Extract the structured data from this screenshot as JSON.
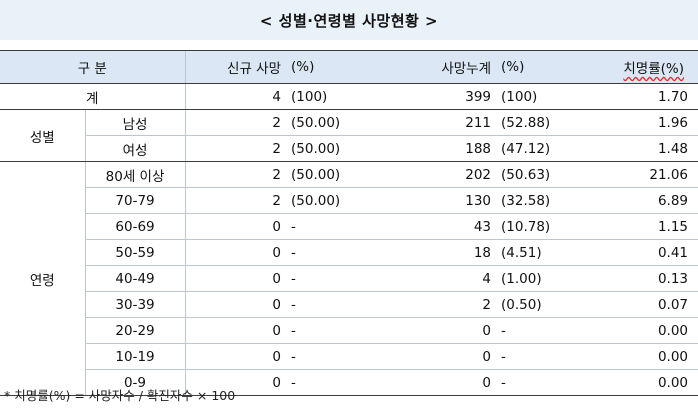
{
  "title": "< 성별·연령별 사망현황 >",
  "headers": {
    "category": "구 분",
    "new_deaths": "신규 사망",
    "new_pct": "(%)",
    "total_deaths": "사망누계",
    "total_pct": "(%)",
    "fatality_rate": "치명률(%)"
  },
  "total": {
    "label": "계",
    "new": "4",
    "new_pct": "(100)",
    "cum": "399",
    "cum_pct": "(100)",
    "rate": "1.70"
  },
  "sex": {
    "group_label": "성별",
    "rows": [
      {
        "label": "남성",
        "new": "2",
        "new_pct": "(50.00)",
        "cum": "211",
        "cum_pct": "(52.88)",
        "rate": "1.96"
      },
      {
        "label": "여성",
        "new": "2",
        "new_pct": "(50.00)",
        "cum": "188",
        "cum_pct": "(47.12)",
        "rate": "1.48"
      }
    ]
  },
  "age": {
    "group_label": "연령",
    "rows": [
      {
        "label": "80세 이상",
        "new": "2",
        "new_pct": "(50.00)",
        "cum": "202",
        "cum_pct": "(50.63)",
        "rate": "21.06"
      },
      {
        "label": "70-79",
        "new": "2",
        "new_pct": "(50.00)",
        "cum": "130",
        "cum_pct": "(32.58)",
        "rate": "6.89"
      },
      {
        "label": "60-69",
        "new": "0",
        "new_pct": "-",
        "cum": "43",
        "cum_pct": "(10.78)",
        "rate": "1.15"
      },
      {
        "label": "50-59",
        "new": "0",
        "new_pct": "-",
        "cum": "18",
        "cum_pct": "(4.51)",
        "rate": "0.41"
      },
      {
        "label": "40-49",
        "new": "0",
        "new_pct": "-",
        "cum": "4",
        "cum_pct": "(1.00)",
        "rate": "0.13"
      },
      {
        "label": "30-39",
        "new": "0",
        "new_pct": "-",
        "cum": "2",
        "cum_pct": "(0.50)",
        "rate": "0.07"
      },
      {
        "label": "20-29",
        "new": "0",
        "new_pct": "-",
        "cum": "0",
        "cum_pct": "-",
        "rate": "0.00"
      },
      {
        "label": "10-19",
        "new": "0",
        "new_pct": "-",
        "cum": "0",
        "cum_pct": "-",
        "rate": "0.00"
      },
      {
        "label": "0-9",
        "new": "0",
        "new_pct": "-",
        "cum": "0",
        "cum_pct": "-",
        "rate": "0.00"
      }
    ]
  },
  "footnote": "* 치명률(%) = 사망자수 / 확진자수 × 100",
  "colors": {
    "title_bg": "#eaf2f9",
    "header_bg": "#dbe7f4",
    "rule": "#3c3c3c",
    "grid": "#bfc5cc"
  }
}
